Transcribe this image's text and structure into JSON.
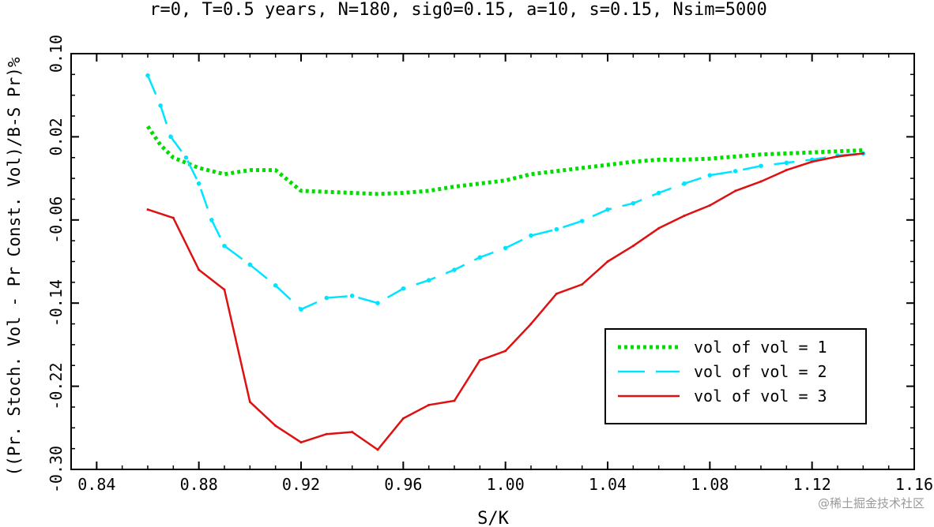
{
  "chart_data": {
    "type": "line",
    "title": "r=0, T=0.5 years, N=180, sig0=0.15, a=10, s=0.15, Nsim=5000",
    "xlabel": "S/K",
    "ylabel": "((Pr. Stoch. Vol - Pr Const. Vol)/B-S Pr)%",
    "xlim": [
      0.83,
      1.16
    ],
    "ylim": [
      -0.3,
      0.1
    ],
    "xticks": [
      "0.84",
      "0.88",
      "0.92",
      "0.96",
      "1.00",
      "1.04",
      "1.08",
      "1.12",
      "1.16"
    ],
    "yticks": [
      "0.10",
      "0.02",
      "-0.06",
      "-0.14",
      "-0.22",
      "-0.30"
    ],
    "grid": false,
    "legend_position": "bottom-right",
    "series": [
      {
        "name": "vol of vol = 1",
        "color": "#00dd00",
        "style": "dotted",
        "x": [
          0.86,
          0.865,
          0.87,
          0.88,
          0.89,
          0.9,
          0.91,
          0.92,
          0.93,
          0.94,
          0.95,
          0.96,
          0.97,
          0.98,
          0.99,
          1.0,
          1.01,
          1.02,
          1.03,
          1.04,
          1.05,
          1.06,
          1.07,
          1.08,
          1.09,
          1.1,
          1.11,
          1.12,
          1.13,
          1.14
        ],
        "y": [
          0.03,
          0.012,
          0.0,
          -0.01,
          -0.016,
          -0.012,
          -0.012,
          -0.032,
          -0.033,
          -0.034,
          -0.035,
          -0.034,
          -0.032,
          -0.028,
          -0.025,
          -0.022,
          -0.016,
          -0.013,
          -0.01,
          -0.007,
          -0.004,
          -0.002,
          -0.002,
          -0.001,
          0.001,
          0.003,
          0.004,
          0.005,
          0.006,
          0.007
        ]
      },
      {
        "name": "vol of vol = 2",
        "color": "#00e5ff",
        "style": "dashed",
        "x": [
          0.86,
          0.865,
          0.869,
          0.875,
          0.88,
          0.885,
          0.89,
          0.9,
          0.91,
          0.92,
          0.93,
          0.94,
          0.95,
          0.96,
          0.97,
          0.98,
          0.99,
          1.0,
          1.01,
          1.02,
          1.03,
          1.04,
          1.05,
          1.06,
          1.07,
          1.08,
          1.09,
          1.1,
          1.11,
          1.12,
          1.13,
          1.14
        ],
        "y": [
          0.079,
          0.05,
          0.02,
          0.0,
          -0.025,
          -0.06,
          -0.085,
          -0.103,
          -0.123,
          -0.146,
          -0.135,
          -0.133,
          -0.14,
          -0.126,
          -0.118,
          -0.108,
          -0.096,
          -0.087,
          -0.075,
          -0.069,
          -0.061,
          -0.05,
          -0.044,
          -0.034,
          -0.025,
          -0.017,
          -0.013,
          -0.008,
          -0.005,
          -0.002,
          0.002,
          0.004
        ]
      },
      {
        "name": "vol of vol = 3",
        "color": "#dd1111",
        "style": "solid",
        "x": [
          0.86,
          0.87,
          0.88,
          0.89,
          0.9,
          0.91,
          0.92,
          0.93,
          0.94,
          0.95,
          0.96,
          0.97,
          0.98,
          0.99,
          1.0,
          1.01,
          1.02,
          1.03,
          1.04,
          1.05,
          1.06,
          1.07,
          1.08,
          1.09,
          1.1,
          1.11,
          1.12,
          1.13,
          1.14
        ],
        "y": [
          -0.05,
          -0.058,
          -0.108,
          -0.127,
          -0.235,
          -0.258,
          -0.274,
          -0.266,
          -0.264,
          -0.281,
          -0.251,
          -0.238,
          -0.234,
          -0.195,
          -0.186,
          -0.16,
          -0.131,
          -0.122,
          -0.1,
          -0.085,
          -0.068,
          -0.056,
          -0.046,
          -0.032,
          -0.023,
          -0.012,
          -0.004,
          0.001,
          0.004
        ]
      }
    ]
  },
  "watermark": "@稀土掘金技术社区"
}
